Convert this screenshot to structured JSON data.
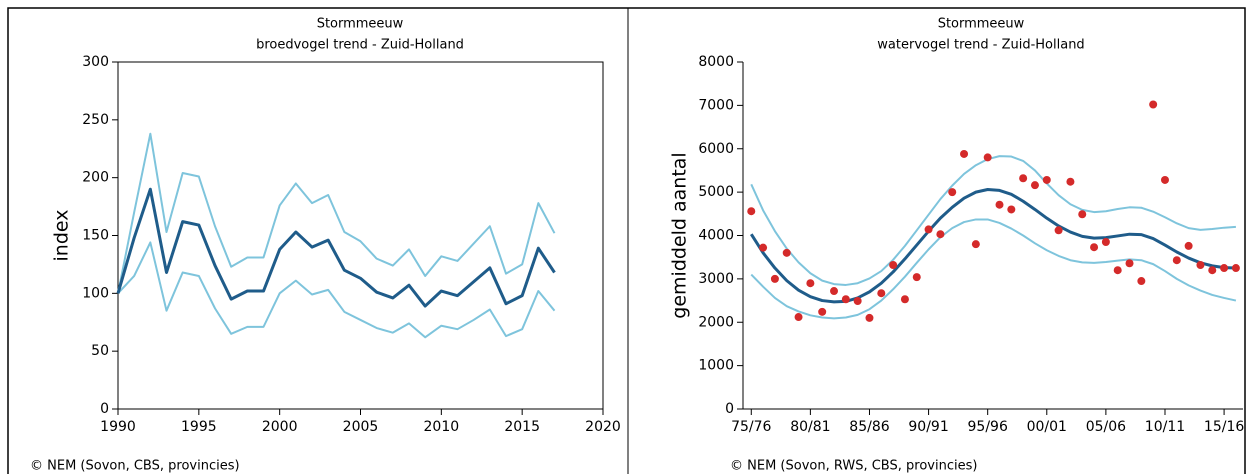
{
  "chart_data": [
    {
      "type": "line",
      "title": "Stormmeeuw",
      "subtitle": "broedvogel trend - Zuid-Holland",
      "y_label": "index",
      "source": "© NEM (Sovon, CBS, provincies)",
      "frame": true,
      "x": [
        1990,
        1991,
        1992,
        1993,
        1994,
        1995,
        1996,
        1997,
        1998,
        1999,
        2000,
        2001,
        2002,
        2003,
        2004,
        2005,
        2006,
        2007,
        2008,
        2009,
        2010,
        2011,
        2012,
        2013,
        2014,
        2015,
        2016,
        2017
      ],
      "xlim": [
        1990,
        2020
      ],
      "xticks": [
        1990,
        1995,
        2000,
        2005,
        2010,
        2015,
        2020
      ],
      "ylim": [
        0,
        300
      ],
      "yticks": [
        0,
        50,
        100,
        150,
        200,
        250,
        300
      ],
      "series": [
        {
          "color": "#7ec4dc",
          "values": [
            100,
            170,
            238,
            153,
            204,
            201,
            158,
            123,
            131,
            131,
            176,
            195,
            178,
            185,
            153,
            145,
            130,
            124,
            138,
            115,
            132,
            128,
            143,
            158,
            117,
            125,
            178,
            152
          ]
        },
        {
          "color": "#7ec4dc",
          "values": [
            100,
            115,
            144,
            85,
            118,
            115,
            87,
            65,
            71,
            71,
            100,
            111,
            99,
            103,
            84,
            77,
            70,
            66,
            74,
            62,
            72,
            69,
            77,
            86,
            63,
            69,
            102,
            85
          ]
        },
        {
          "color": "#1f5c8a",
          "values": [
            100,
            148,
            190,
            118,
            162,
            159,
            124,
            95,
            102,
            102,
            138,
            153,
            140,
            146,
            120,
            113,
            101,
            96,
            107,
            89,
            102,
            98,
            110,
            122,
            91,
            98,
            139,
            118
          ]
        }
      ]
    },
    {
      "type": "line",
      "title": "Stormmeeuw",
      "subtitle": "watervogel trend - Zuid-Holland",
      "y_label": "gemiddeld aantal",
      "source": "© NEM (Sovon, RWS, CBS, provincies)",
      "frame": false,
      "x": [
        1975,
        1976,
        1977,
        1978,
        1979,
        1980,
        1981,
        1982,
        1983,
        1984,
        1985,
        1986,
        1987,
        1988,
        1989,
        1990,
        1991,
        1992,
        1993,
        1994,
        1995,
        1996,
        1997,
        1998,
        1999,
        2000,
        2001,
        2002,
        2003,
        2004,
        2005,
        2006,
        2007,
        2008,
        2009,
        2010,
        2011,
        2012,
        2013,
        2014,
        2015,
        2016
      ],
      "xlim": [
        1974.3,
        2016.6
      ],
      "xticks": [
        {
          "value": 1975,
          "label": "75/76"
        },
        {
          "value": 1980,
          "label": "80/81"
        },
        {
          "value": 1985,
          "label": "85/86"
        },
        {
          "value": 1990,
          "label": "90/91"
        },
        {
          "value": 1995,
          "label": "95/96"
        },
        {
          "value": 2000,
          "label": "00/01"
        },
        {
          "value": 2005,
          "label": "05/06"
        },
        {
          "value": 2010,
          "label": "10/11"
        },
        {
          "value": 2015,
          "label": "15/16"
        }
      ],
      "ylim": [
        0,
        8000
      ],
      "yticks": [
        0,
        1000,
        2000,
        3000,
        4000,
        5000,
        6000,
        7000,
        8000
      ],
      "series": [
        {
          "color": "#7ec4dc",
          "values": [
            5180,
            4580,
            4100,
            3700,
            3380,
            3130,
            2960,
            2880,
            2860,
            2900,
            3010,
            3180,
            3440,
            3760,
            4120,
            4480,
            4840,
            5150,
            5420,
            5620,
            5760,
            5830,
            5820,
            5720,
            5500,
            5200,
            4930,
            4720,
            4590,
            4540,
            4560,
            4610,
            4650,
            4640,
            4550,
            4420,
            4280,
            4170,
            4130,
            4150,
            4180,
            4200
          ]
        },
        {
          "color": "#7ec4dc",
          "values": [
            3100,
            2820,
            2560,
            2370,
            2250,
            2160,
            2110,
            2090,
            2110,
            2170,
            2300,
            2500,
            2760,
            3050,
            3370,
            3680,
            3960,
            4170,
            4310,
            4370,
            4370,
            4290,
            4160,
            4000,
            3820,
            3660,
            3530,
            3430,
            3380,
            3370,
            3390,
            3420,
            3450,
            3430,
            3340,
            3180,
            3000,
            2850,
            2730,
            2630,
            2560,
            2500
          ]
        },
        {
          "color": "#1f5c8a",
          "values": [
            4030,
            3600,
            3250,
            2960,
            2740,
            2590,
            2500,
            2470,
            2480,
            2560,
            2700,
            2900,
            3160,
            3460,
            3780,
            4100,
            4400,
            4650,
            4860,
            5000,
            5060,
            5040,
            4950,
            4790,
            4600,
            4400,
            4220,
            4080,
            3980,
            3940,
            3950,
            3990,
            4030,
            4020,
            3930,
            3780,
            3620,
            3480,
            3370,
            3300,
            3260,
            3250
          ]
        },
        {
          "type": "scatter",
          "color": "#d42a2a",
          "values": [
            4560,
            3720,
            3000,
            3600,
            2120,
            2900,
            2240,
            2720,
            2530,
            2490,
            2100,
            2670,
            3320,
            2530,
            3040,
            4140,
            4030,
            5000,
            5880,
            3800,
            5800,
            4710,
            4600,
            5320,
            5160,
            5280,
            4120,
            5240,
            4490,
            3730,
            3850,
            3200,
            3360,
            2950,
            7020,
            5280,
            3430,
            3760,
            3320,
            3200,
            3250,
            3250
          ]
        }
      ]
    }
  ]
}
